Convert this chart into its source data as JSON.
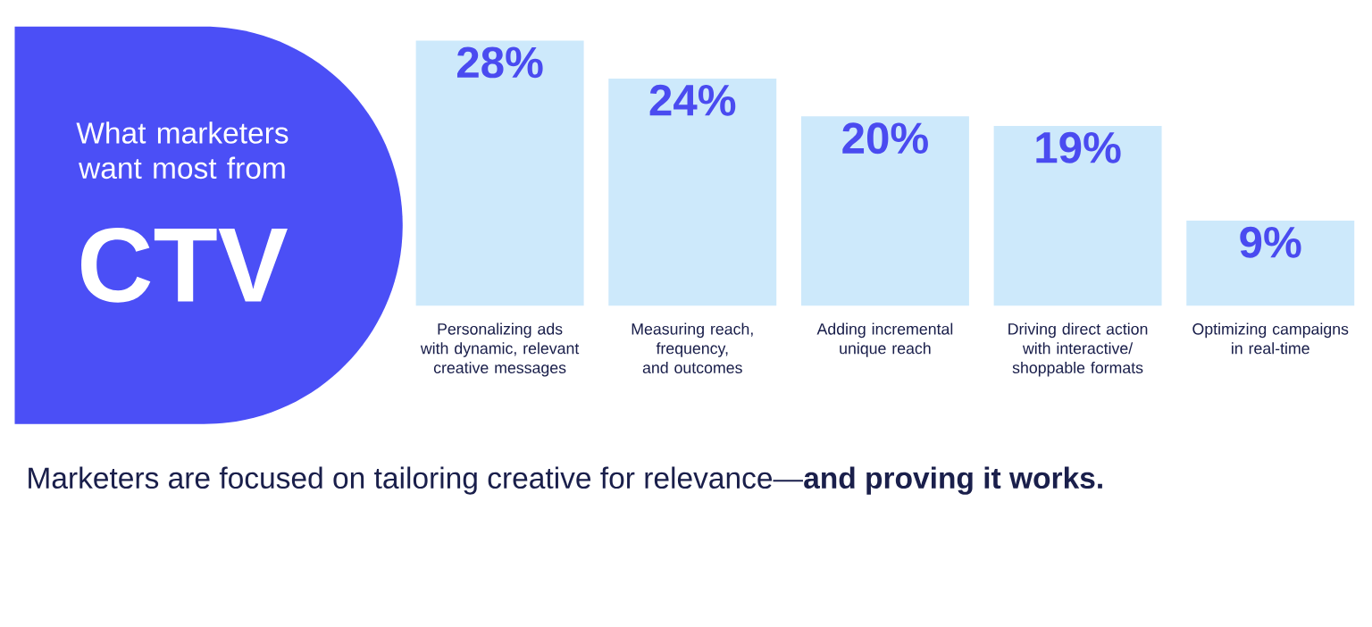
{
  "chart_data": {
    "type": "bar",
    "title": "What marketers want most from",
    "subtitle": "CTV",
    "categories": [
      "Personalizing ads with dynamic, relevant creative messages",
      "Measuring reach, frequency, and outcomes",
      "Adding incremental unique reach",
      "Driving direct action with interactive/ shoppable formats",
      "Optimizing campaigns in real-time"
    ],
    "values": [
      28,
      24,
      20,
      19,
      9
    ],
    "value_labels": [
      "28%",
      "24%",
      "20%",
      "19%",
      "9%"
    ],
    "color": "#cde9fb",
    "annotations": [
      "Marketers are focused on tailoring creative for relevance—**and proving it works.**"
    ]
  }
}
